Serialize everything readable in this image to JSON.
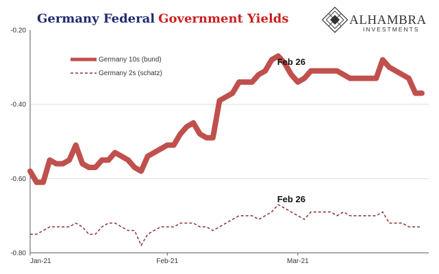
{
  "title": {
    "part1": "Germany Federal",
    "part2": "Government Yields"
  },
  "logo": {
    "name": "ALHAMBRA",
    "sub": "INVESTMENTS"
  },
  "colors": {
    "title_blue": "#1f2a6e",
    "title_red": "#cc1f1f",
    "bund": "#c0504d",
    "schatz": "#8b2e2e",
    "grid": "#dddddd"
  },
  "chart_data": {
    "type": "line",
    "ylim": [
      -0.8,
      -0.2
    ],
    "yticks": [
      "-0.20",
      "-0.40",
      "-0.60",
      "-0.80"
    ],
    "xticks": [
      "Jan-21",
      "Feb-21",
      "Mar-21"
    ],
    "legend_position": "top-left",
    "grid": "horizontal",
    "x": [
      "2021-01-01",
      "2021-01-04",
      "2021-01-05",
      "2021-01-06",
      "2021-01-07",
      "2021-01-08",
      "2021-01-11",
      "2021-01-12",
      "2021-01-13",
      "2021-01-14",
      "2021-01-15",
      "2021-01-18",
      "2021-01-19",
      "2021-01-20",
      "2021-01-21",
      "2021-01-22",
      "2021-01-25",
      "2021-01-26",
      "2021-01-27",
      "2021-01-28",
      "2021-01-29",
      "2021-02-01",
      "2021-02-02",
      "2021-02-03",
      "2021-02-04",
      "2021-02-05",
      "2021-02-08",
      "2021-02-09",
      "2021-02-10",
      "2021-02-11",
      "2021-02-12",
      "2021-02-15",
      "2021-02-16",
      "2021-02-17",
      "2021-02-18",
      "2021-02-19",
      "2021-02-22",
      "2021-02-23",
      "2021-02-24",
      "2021-02-25",
      "2021-02-26",
      "2021-03-01",
      "2021-03-02",
      "2021-03-03",
      "2021-03-04",
      "2021-03-05",
      "2021-03-08",
      "2021-03-09",
      "2021-03-10",
      "2021-03-11",
      "2021-03-12",
      "2021-03-15",
      "2021-03-16",
      "2021-03-17",
      "2021-03-18",
      "2021-03-19",
      "2021-03-22",
      "2021-03-23",
      "2021-03-24",
      "2021-03-25",
      "2021-03-26"
    ],
    "series": [
      {
        "name": "Germany 10s (bund)",
        "values": [
          -0.58,
          -0.61,
          -0.61,
          -0.55,
          -0.56,
          -0.56,
          -0.55,
          -0.51,
          -0.56,
          -0.57,
          -0.57,
          -0.55,
          -0.55,
          -0.53,
          -0.54,
          -0.55,
          -0.57,
          -0.58,
          -0.54,
          -0.53,
          -0.52,
          -0.51,
          -0.51,
          -0.48,
          -0.46,
          -0.45,
          -0.48,
          -0.49,
          -0.49,
          -0.39,
          -0.38,
          -0.37,
          -0.34,
          -0.34,
          -0.34,
          -0.32,
          -0.31,
          -0.28,
          -0.27,
          -0.29,
          -0.32,
          -0.34,
          -0.33,
          -0.31,
          -0.31,
          -0.31,
          -0.31,
          -0.31,
          -0.32,
          -0.33,
          -0.33,
          -0.33,
          -0.33,
          -0.33,
          -0.28,
          -0.3,
          -0.31,
          -0.32,
          -0.33,
          -0.37,
          -0.37
        ]
      },
      {
        "name": "Germany 2s (schatz)",
        "values": [
          -0.75,
          -0.75,
          -0.74,
          -0.73,
          -0.73,
          -0.73,
          -0.73,
          -0.72,
          -0.73,
          -0.75,
          -0.75,
          -0.73,
          -0.72,
          -0.72,
          -0.73,
          -0.74,
          -0.74,
          -0.78,
          -0.75,
          -0.74,
          -0.73,
          -0.73,
          -0.73,
          -0.72,
          -0.72,
          -0.72,
          -0.73,
          -0.73,
          -0.74,
          -0.73,
          -0.72,
          -0.71,
          -0.7,
          -0.7,
          -0.7,
          -0.71,
          -0.7,
          -0.69,
          -0.67,
          -0.68,
          -0.69,
          -0.7,
          -0.71,
          -0.69,
          -0.69,
          -0.69,
          -0.69,
          -0.7,
          -0.69,
          -0.7,
          -0.7,
          -0.7,
          -0.7,
          -0.7,
          -0.69,
          -0.72,
          -0.72,
          -0.72,
          -0.73,
          -0.73,
          -0.73
        ]
      }
    ],
    "annotations": [
      {
        "text": "Feb 26",
        "series": 0,
        "x": "2021-02-26"
      },
      {
        "text": "Feb 26",
        "series": 1,
        "x": "2021-02-26"
      }
    ]
  }
}
